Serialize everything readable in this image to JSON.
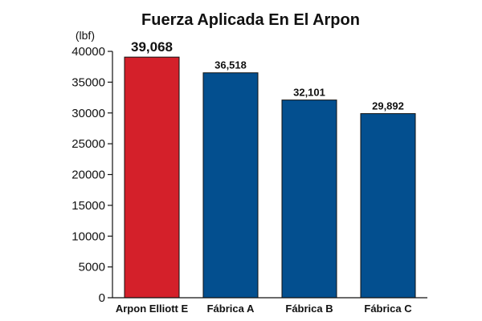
{
  "chart_data": {
    "type": "bar",
    "title": "Fuerza Aplicada En El Arpon",
    "unit_label": "(lbf)",
    "categories": [
      "Arpon Elliott E",
      "Fábrica A",
      "Fábrica B",
      "Fábrica C"
    ],
    "values": [
      39068,
      36518,
      32101,
      29892
    ],
    "value_labels": [
      "39,068",
      "36,518",
      "32,101",
      "29,892"
    ],
    "bar_colors": [
      "#d4202a",
      "#034f8f",
      "#034f8f",
      "#034f8f"
    ],
    "ylim": [
      0,
      40000
    ],
    "yticks": [
      0,
      5000,
      10000,
      15000,
      20000,
      25000,
      30000,
      35000,
      40000
    ],
    "ytick_labels": [
      "0",
      "5000",
      "10000",
      "15000",
      "20000",
      "25000",
      "30000",
      "35000",
      "40000"
    ],
    "grid": false,
    "legend": "none"
  }
}
